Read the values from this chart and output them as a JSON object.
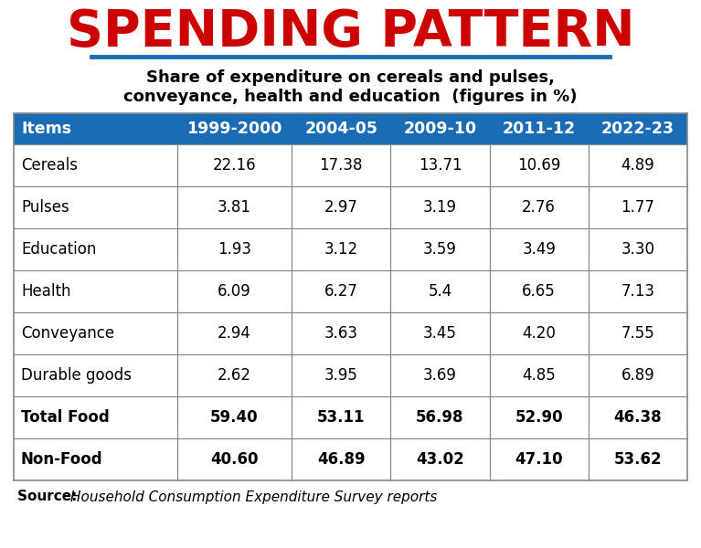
{
  "title": "SPENDING PATTERN",
  "subtitle_line1": "Share of expenditure on cereals and pulses,",
  "subtitle_line2": "conveyance, health and education  (figures in %)",
  "header_row": [
    "Items",
    "1999-2000",
    "2004-05",
    "2009-10",
    "2011-12",
    "2022-23"
  ],
  "rows": [
    [
      "Cereals",
      "22.16",
      "17.38",
      "13.71",
      "10.69",
      "4.89"
    ],
    [
      "Pulses",
      "3.81",
      "2.97",
      "3.19",
      "2.76",
      "1.77"
    ],
    [
      "Education",
      "1.93",
      "3.12",
      "3.59",
      "3.49",
      "3.30"
    ],
    [
      "Health",
      "6.09",
      "6.27",
      "5.4",
      "6.65",
      "7.13"
    ],
    [
      "Conveyance",
      "2.94",
      "3.63",
      "3.45",
      "4.20",
      "7.55"
    ],
    [
      "Durable goods",
      "2.62",
      "3.95",
      "3.69",
      "4.85",
      "6.89"
    ],
    [
      "Total Food",
      "59.40",
      "53.11",
      "56.98",
      "52.90",
      "46.38"
    ],
    [
      "Non-Food",
      "40.60",
      "46.89",
      "43.02",
      "47.10",
      "53.62"
    ]
  ],
  "header_bg": "#1A6DB5",
  "header_text_color": "#FFFFFF",
  "title_color": "#CC0000",
  "underline_color": "#1A6DB5",
  "body_text_color": "#000000",
  "border_color": "#888888",
  "bg_color": "#FFFFFF",
  "figsize": [
    7.67,
    6.0
  ],
  "dpi": 100
}
